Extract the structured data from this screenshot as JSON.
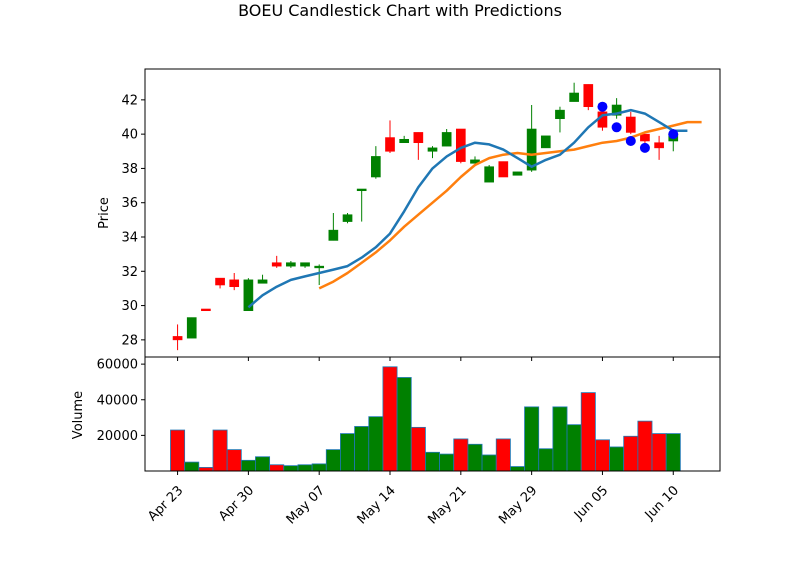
{
  "chart_data": {
    "type": "candlestick",
    "title": "BOEU Candlestick Chart with Predictions",
    "price_panel": {
      "ylabel": "Price",
      "ylim": [
        27.0,
        43.8
      ],
      "yticks": [
        28,
        30,
        32,
        34,
        36,
        38,
        40,
        42
      ]
    },
    "volume_panel": {
      "ylabel": "Volume",
      "ylim": [
        0,
        64000
      ],
      "yticks": [
        20000,
        40000,
        60000
      ],
      "ytick_labels": [
        "20000",
        "40000",
        "60000"
      ]
    },
    "x_index_range": [
      -2.3,
      38.3
    ],
    "x_tick_labels": [
      {
        "index": 0,
        "label": "Apr 23"
      },
      {
        "index": 5,
        "label": "Apr 30"
      },
      {
        "index": 10,
        "label": "May 07"
      },
      {
        "index": 15,
        "label": "May 14"
      },
      {
        "index": 20,
        "label": "May 21"
      },
      {
        "index": 25,
        "label": "May 29"
      },
      {
        "index": 30,
        "label": "Jun 05"
      },
      {
        "index": 35,
        "label": "Jun 10"
      }
    ],
    "colors": {
      "up": "#008000",
      "down": "#ff0000",
      "ma_short": "#1f77b4",
      "ma_long": "#ff7f0e",
      "prediction": "#0000ff",
      "volume_edge": "#1f77b4"
    },
    "candles": [
      {
        "open": 28.2,
        "high": 28.9,
        "low": 27.4,
        "close": 28.0,
        "volume": 23000
      },
      {
        "open": 28.1,
        "high": 29.3,
        "low": 28.1,
        "close": 29.3,
        "volume": 5000
      },
      {
        "open": 29.8,
        "high": 29.8,
        "low": 29.7,
        "close": 29.7,
        "volume": 2000
      },
      {
        "open": 31.6,
        "high": 31.6,
        "low": 31.0,
        "close": 31.2,
        "volume": 23000
      },
      {
        "open": 31.5,
        "high": 31.9,
        "low": 30.9,
        "close": 31.1,
        "volume": 12000
      },
      {
        "open": 29.7,
        "high": 31.6,
        "low": 29.7,
        "close": 31.5,
        "volume": 6000
      },
      {
        "open": 31.3,
        "high": 31.8,
        "low": 31.3,
        "close": 31.5,
        "volume": 8000
      },
      {
        "open": 32.5,
        "high": 32.9,
        "low": 32.2,
        "close": 32.3,
        "volume": 3500
      },
      {
        "open": 32.3,
        "high": 32.6,
        "low": 32.2,
        "close": 32.5,
        "volume": 3000
      },
      {
        "open": 32.3,
        "high": 32.5,
        "low": 32.2,
        "close": 32.5,
        "volume": 3500
      },
      {
        "open": 32.2,
        "high": 32.4,
        "low": 31.2,
        "close": 32.3,
        "volume": 4000
      },
      {
        "open": 33.8,
        "high": 35.4,
        "low": 33.8,
        "close": 34.4,
        "volume": 12000
      },
      {
        "open": 34.9,
        "high": 35.4,
        "low": 34.8,
        "close": 35.3,
        "volume": 21000
      },
      {
        "open": 36.7,
        "high": 36.8,
        "low": 34.9,
        "close": 36.8,
        "volume": 25000
      },
      {
        "open": 37.5,
        "high": 39.3,
        "low": 37.4,
        "close": 38.7,
        "volume": 30500
      },
      {
        "open": 39.8,
        "high": 40.8,
        "low": 38.9,
        "close": 39.0,
        "volume": 58500
      },
      {
        "open": 39.5,
        "high": 39.9,
        "low": 39.5,
        "close": 39.7,
        "volume": 52500
      },
      {
        "open": 40.1,
        "high": 40.1,
        "low": 38.5,
        "close": 39.5,
        "volume": 24500
      },
      {
        "open": 39.0,
        "high": 39.3,
        "low": 38.6,
        "close": 39.2,
        "volume": 10500
      },
      {
        "open": 39.3,
        "high": 40.3,
        "low": 39.3,
        "close": 40.1,
        "volume": 9500
      },
      {
        "open": 40.3,
        "high": 40.3,
        "low": 38.3,
        "close": 38.4,
        "volume": 18000
      },
      {
        "open": 38.3,
        "high": 38.7,
        "low": 38.3,
        "close": 38.5,
        "volume": 15000
      },
      {
        "open": 37.2,
        "high": 38.2,
        "low": 37.2,
        "close": 38.1,
        "volume": 9000
      },
      {
        "open": 38.4,
        "high": 38.4,
        "low": 37.5,
        "close": 37.5,
        "volume": 18000
      },
      {
        "open": 37.6,
        "high": 37.8,
        "low": 37.6,
        "close": 37.8,
        "volume": 2500
      },
      {
        "open": 37.9,
        "high": 41.7,
        "low": 37.8,
        "close": 40.3,
        "volume": 36000
      },
      {
        "open": 39.2,
        "high": 39.9,
        "low": 39.2,
        "close": 39.9,
        "volume": 12500
      },
      {
        "open": 40.9,
        "high": 41.6,
        "low": 40.1,
        "close": 41.4,
        "volume": 36000
      },
      {
        "open": 41.9,
        "high": 43.0,
        "low": 41.9,
        "close": 42.4,
        "volume": 26000
      },
      {
        "open": 42.9,
        "high": 42.9,
        "low": 41.4,
        "close": 41.6,
        "volume": 44000
      },
      {
        "open": 41.3,
        "high": 41.4,
        "low": 40.2,
        "close": 40.4,
        "volume": 17500
      },
      {
        "open": 41.1,
        "high": 42.1,
        "low": 40.9,
        "close": 41.7,
        "volume": 13500
      },
      {
        "open": 41.0,
        "high": 41.3,
        "low": 40.0,
        "close": 40.1,
        "volume": 19500
      },
      {
        "open": 40.0,
        "high": 40.0,
        "low": 39.3,
        "close": 39.6,
        "volume": 28000
      },
      {
        "open": 39.5,
        "high": 39.9,
        "low": 38.5,
        "close": 39.2,
        "volume": 21000
      },
      {
        "open": 39.6,
        "high": 40.3,
        "low": 39.0,
        "close": 40.0,
        "volume": 21000
      }
    ],
    "ma_short_start": 5,
    "ma_short": [
      29.9,
      30.6,
      31.1,
      31.5,
      31.7,
      31.9,
      32.1,
      32.3,
      32.8,
      33.4,
      34.2,
      35.5,
      36.9,
      38.0,
      38.7,
      39.2,
      39.5,
      39.4,
      39.1,
      38.6,
      38.1,
      38.5,
      38.8,
      39.5,
      40.4,
      41.1,
      41.2,
      41.4,
      41.2,
      40.7,
      40.2,
      40.2
    ],
    "ma_long_start": 10,
    "ma_long": [
      31.0,
      31.4,
      31.9,
      32.5,
      33.1,
      33.8,
      34.6,
      35.3,
      36.0,
      36.7,
      37.5,
      38.2,
      38.6,
      38.8,
      38.9,
      38.8,
      38.9,
      39.0,
      39.1,
      39.3,
      39.5,
      39.6,
      39.8,
      40.1,
      40.3,
      40.5,
      40.7,
      40.7
    ],
    "predictions": [
      {
        "index": 30,
        "value": 41.6
      },
      {
        "index": 31,
        "value": 40.4
      },
      {
        "index": 32,
        "value": 39.6
      },
      {
        "index": 33,
        "value": 39.2
      },
      {
        "index": 35,
        "value": 40.0
      }
    ]
  }
}
